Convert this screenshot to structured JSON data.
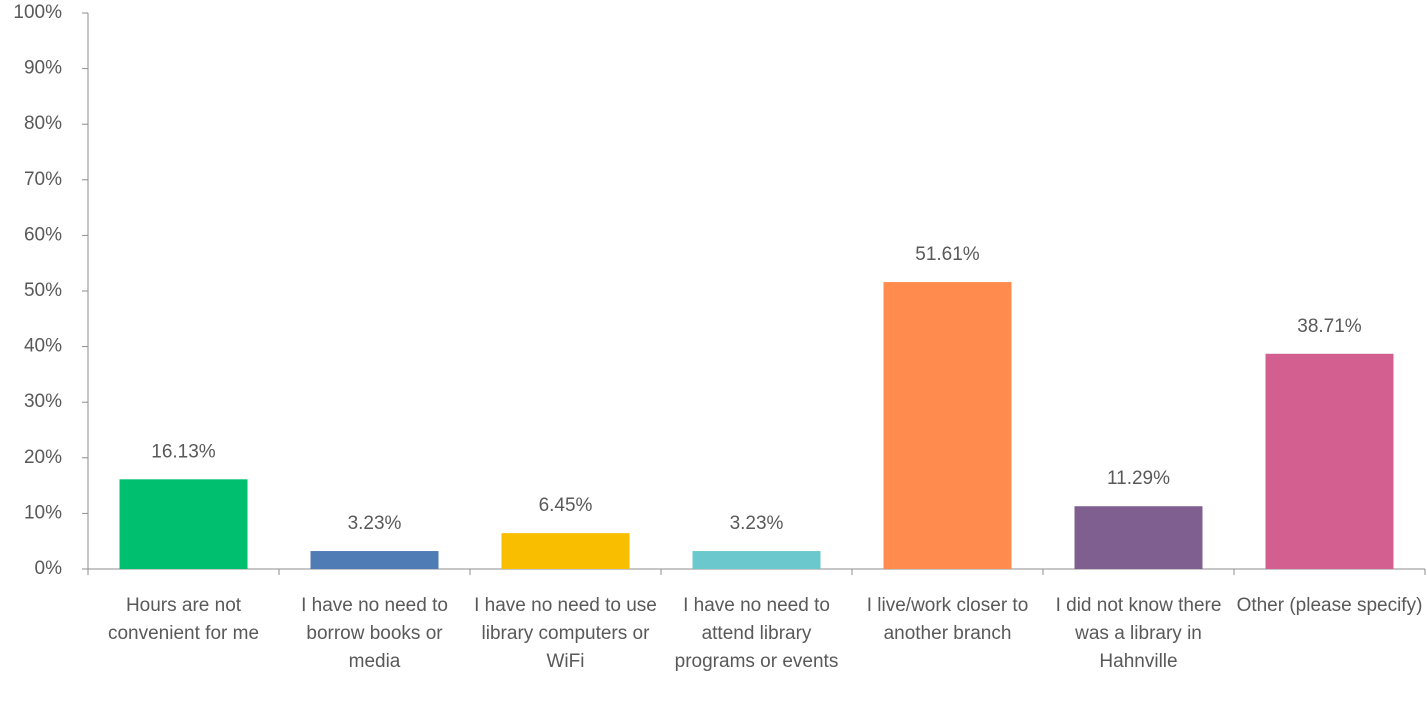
{
  "chart_data": {
    "type": "bar",
    "categories": [
      "Hours are not convenient for me",
      "I have no need to borrow books or media",
      "I have no need to use library computers or WiFi",
      "I have no need to attend library programs or events",
      "I live/work closer to another branch",
      "I did not know there was a library in Hahnville",
      "Other (please specify)"
    ],
    "values": [
      16.13,
      3.23,
      6.45,
      3.23,
      51.61,
      11.29,
      38.71
    ],
    "value_labels": [
      "16.13%",
      "3.23%",
      "6.45%",
      "3.23%",
      "51.61%",
      "11.29%",
      "38.71%"
    ],
    "colors": [
      "#00bf6f",
      "#507cb6",
      "#f9be00",
      "#6bc8cd",
      "#ff8b4f",
      "#7f5f90",
      "#d25f90"
    ],
    "ylim": [
      0,
      100
    ],
    "yticks": [
      {
        "value": 0,
        "label": "0%"
      },
      {
        "value": 10,
        "label": "10%"
      },
      {
        "value": 20,
        "label": "20%"
      },
      {
        "value": 30,
        "label": "30%"
      },
      {
        "value": 40,
        "label": "40%"
      },
      {
        "value": 50,
        "label": "50%"
      },
      {
        "value": 60,
        "label": "60%"
      },
      {
        "value": 70,
        "label": "70%"
      },
      {
        "value": 80,
        "label": "80%"
      },
      {
        "value": 90,
        "label": "90%"
      },
      {
        "value": 100,
        "label": "100%"
      }
    ],
    "grid": false
  }
}
